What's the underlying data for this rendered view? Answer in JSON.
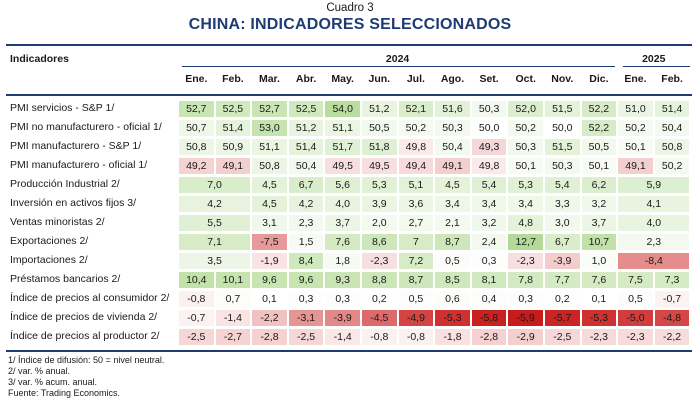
{
  "header": {
    "number": "Cuadro 3",
    "title": "CHINA: INDICADORES SELECCIONADOS"
  },
  "table": {
    "indicator_header": "Indicadores",
    "year_groups": [
      "2024",
      "2025"
    ],
    "months": [
      "Ene.",
      "Feb.",
      "Mar.",
      "Abr.",
      "May.",
      "Jun.",
      "Jul.",
      "Ago.",
      "Set.",
      "Oct.",
      "Nov.",
      "Dic.",
      "Ene.",
      "Feb."
    ],
    "rows": [
      {
        "label": "PMI servicios - S&P 1/",
        "cells": [
          {
            "v": "52,7",
            "c": "#c8e5b3"
          },
          {
            "v": "52,5",
            "c": "#d0e9bd"
          },
          {
            "v": "52,7",
            "c": "#c8e5b3"
          },
          {
            "v": "52,5",
            "c": "#d0e9bd"
          },
          {
            "v": "54,0",
            "c": "#b8dd9e"
          },
          {
            "v": "51,2",
            "c": "#e8f4df"
          },
          {
            "v": "52,1",
            "c": "#d9edca"
          },
          {
            "v": "51,6",
            "c": "#e2f1d8"
          },
          {
            "v": "50,3",
            "c": "#f4f9ef"
          },
          {
            "v": "52,0",
            "c": "#dbeecd"
          },
          {
            "v": "51,5",
            "c": "#e3f2d9"
          },
          {
            "v": "52,2",
            "c": "#d6ebc6"
          },
          {
            "v": "51,0",
            "c": "#ebf5e3"
          },
          {
            "v": "51,4",
            "c": "#e5f2dc"
          }
        ]
      },
      {
        "label": "PMI no manufacturero - oficial 1/",
        "cells": [
          {
            "v": "50,7",
            "c": "#eef7e8"
          },
          {
            "v": "51,4",
            "c": "#e5f2dc"
          },
          {
            "v": "53,0",
            "c": "#c4e3ad"
          },
          {
            "v": "51,2",
            "c": "#e8f4df"
          },
          {
            "v": "51,1",
            "c": "#eaf5e2"
          },
          {
            "v": "50,5",
            "c": "#f1f8ec"
          },
          {
            "v": "50,2",
            "c": "#f5faf1"
          },
          {
            "v": "50,3",
            "c": "#f4f9ef"
          },
          {
            "v": "50,0",
            "c": "#ffffff"
          },
          {
            "v": "50,2",
            "c": "#f5faf1"
          },
          {
            "v": "50,0",
            "c": "#ffffff"
          },
          {
            "v": "52,2",
            "c": "#d6ebc6"
          },
          {
            "v": "50,2",
            "c": "#f5faf1"
          },
          {
            "v": "50,4",
            "c": "#f2f9ed"
          }
        ]
      },
      {
        "label": "PMI manufacturero - S&P 1/",
        "cells": [
          {
            "v": "50,8",
            "c": "#edf6e6"
          },
          {
            "v": "50,9",
            "c": "#ecf6e5"
          },
          {
            "v": "51,1",
            "c": "#eaf5e2"
          },
          {
            "v": "51,4",
            "c": "#e5f2dc"
          },
          {
            "v": "51,7",
            "c": "#e0f0d5"
          },
          {
            "v": "51,8",
            "c": "#dfefd3"
          },
          {
            "v": "49,8",
            "c": "#fbeaea"
          },
          {
            "v": "50,4",
            "c": "#f2f9ed"
          },
          {
            "v": "49,3",
            "c": "#f6d7d7"
          },
          {
            "v": "50,3",
            "c": "#f4f9ef"
          },
          {
            "v": "51,5",
            "c": "#e3f2d9"
          },
          {
            "v": "50,5",
            "c": "#f1f8ec"
          },
          {
            "v": "50,1",
            "c": "#f8fbf5"
          },
          {
            "v": "50,8",
            "c": "#edf6e6"
          }
        ]
      },
      {
        "label": "PMI manufacturero - oficial 1/",
        "cells": [
          {
            "v": "49,2",
            "c": "#f5d3d3"
          },
          {
            "v": "49,1",
            "c": "#f4cfcf"
          },
          {
            "v": "50,8",
            "c": "#edf6e6"
          },
          {
            "v": "50,4",
            "c": "#f2f9ed"
          },
          {
            "v": "49,5",
            "c": "#f8dfdf"
          },
          {
            "v": "49,5",
            "c": "#f8dfdf"
          },
          {
            "v": "49,4",
            "c": "#f7dbdb"
          },
          {
            "v": "49,1",
            "c": "#f4cfcf"
          },
          {
            "v": "49,8",
            "c": "#fbeaea"
          },
          {
            "v": "50,1",
            "c": "#f8fbf5"
          },
          {
            "v": "50,3",
            "c": "#f4f9ef"
          },
          {
            "v": "50,1",
            "c": "#f8fbf5"
          },
          {
            "v": "49,1",
            "c": "#f4cfcf"
          },
          {
            "v": "50,2",
            "c": "#f5faf1"
          }
        ]
      },
      {
        "label": "Producción Industrial 2/",
        "cells": [
          {
            "v": "7,0",
            "c": "#d8edca",
            "span": 2
          },
          {
            "v": "4,5",
            "c": "#e4f2da"
          },
          {
            "v": "6,7",
            "c": "#d9edca"
          },
          {
            "v": "5,6",
            "c": "#dff0d3"
          },
          {
            "v": "5,3",
            "c": "#e1f1d6"
          },
          {
            "v": "5,1",
            "c": "#e2f1d8"
          },
          {
            "v": "4,5",
            "c": "#e4f2da"
          },
          {
            "v": "5,4",
            "c": "#e0f0d5"
          },
          {
            "v": "5,3",
            "c": "#e1f1d6"
          },
          {
            "v": "5,4",
            "c": "#e0f0d5"
          },
          {
            "v": "6,2",
            "c": "#dbeecd"
          },
          {
            "v": "5,9",
            "c": "#dcefd0",
            "span": 2
          }
        ]
      },
      {
        "label": "Inversión en activos fijos 3/",
        "cells": [
          {
            "v": "4,2",
            "c": "#e7f3de",
            "span": 2
          },
          {
            "v": "4,5",
            "c": "#e4f2da"
          },
          {
            "v": "4,2",
            "c": "#e7f3de"
          },
          {
            "v": "4,0",
            "c": "#e9f4e0"
          },
          {
            "v": "3,9",
            "c": "#eaf5e2"
          },
          {
            "v": "3,6",
            "c": "#ecf6e5"
          },
          {
            "v": "3,4",
            "c": "#eef7e8"
          },
          {
            "v": "3,4",
            "c": "#eef7e8"
          },
          {
            "v": "3,4",
            "c": "#eef7e8"
          },
          {
            "v": "3,3",
            "c": "#eff7e9"
          },
          {
            "v": "3,2",
            "c": "#f0f8eb"
          },
          {
            "v": "4,1",
            "c": "#e8f4df",
            "span": 2
          }
        ]
      },
      {
        "label": "Ventas minoristas 2/",
        "cells": [
          {
            "v": "5,5",
            "c": "#e0f0d5",
            "span": 2
          },
          {
            "v": "3,1",
            "c": "#f0f8eb"
          },
          {
            "v": "2,3",
            "c": "#f4f9ef"
          },
          {
            "v": "3,7",
            "c": "#ecf6e5"
          },
          {
            "v": "2,0",
            "c": "#f5faf1"
          },
          {
            "v": "2,7",
            "c": "#f2f9ed"
          },
          {
            "v": "2,1",
            "c": "#f5faf1"
          },
          {
            "v": "3,2",
            "c": "#f0f8eb"
          },
          {
            "v": "4,8",
            "c": "#e3f2d9"
          },
          {
            "v": "3,0",
            "c": "#f1f8ec"
          },
          {
            "v": "3,7",
            "c": "#ecf6e5"
          },
          {
            "v": "4,0",
            "c": "#e9f4e0",
            "span": 2
          }
        ]
      },
      {
        "label": "Exportaciones  2/",
        "cells": [
          {
            "v": "7,1",
            "c": "#d6ebc6",
            "span": 2
          },
          {
            "v": "-7,5",
            "c": "#e89a9a"
          },
          {
            "v": "1,5",
            "c": "#f7fbf4"
          },
          {
            "v": "7,6",
            "c": "#d3eac2"
          },
          {
            "v": "8,6",
            "c": "#cde7ba"
          },
          {
            "v": "7",
            "c": "#d6ebc6"
          },
          {
            "v": "8,7",
            "c": "#cde7ba"
          },
          {
            "v": "2,4",
            "c": "#f3f9ee"
          },
          {
            "v": "12,7",
            "c": "#b3da98"
          },
          {
            "v": "6,7",
            "c": "#d9edca"
          },
          {
            "v": "10,7",
            "c": "#c0e1a8"
          },
          {
            "v": "2,3",
            "c": "#f4f9ef",
            "span": 2
          }
        ]
      },
      {
        "label": "Importaciones  2/",
        "cells": [
          {
            "v": "3,5",
            "c": "#edf6e6",
            "span": 2
          },
          {
            "v": "-1,9",
            "c": "#f9e3e3"
          },
          {
            "v": "8,4",
            "c": "#cfe8bc"
          },
          {
            "v": "1,8",
            "c": "#f6faf2"
          },
          {
            "v": "-2,3",
            "c": "#f8dfdf"
          },
          {
            "v": "7,2",
            "c": "#d6ebc6"
          },
          {
            "v": "0,5",
            "c": "#fcfdfa"
          },
          {
            "v": "0,3",
            "c": "#fdfefc"
          },
          {
            "v": "-2,3",
            "c": "#f8dfdf"
          },
          {
            "v": "-3,9",
            "c": "#f4cccc"
          },
          {
            "v": "1,0",
            "c": "#f9fcf7"
          },
          {
            "v": "-8,4",
            "c": "#e58c8c",
            "span": 2
          }
        ]
      },
      {
        "label": "Préstamos bancarios 2/",
        "cells": [
          {
            "v": "10,4",
            "c": "#c2e2aa"
          },
          {
            "v": "10,1",
            "c": "#c4e3ad"
          },
          {
            "v": "9,6",
            "c": "#c7e4b1"
          },
          {
            "v": "9,6",
            "c": "#c7e4b1"
          },
          {
            "v": "9,3",
            "c": "#c9e5b4"
          },
          {
            "v": "8,8",
            "c": "#cce6b8"
          },
          {
            "v": "8,7",
            "c": "#cde7ba"
          },
          {
            "v": "8,5",
            "c": "#cee7bb"
          },
          {
            "v": "8,1",
            "c": "#d1e9bf"
          },
          {
            "v": "7,8",
            "c": "#d2e9c1"
          },
          {
            "v": "7,7",
            "c": "#d3eac2"
          },
          {
            "v": "7,6",
            "c": "#d3eac2"
          },
          {
            "v": "7,5",
            "c": "#d4eac3"
          },
          {
            "v": "7,3",
            "c": "#d5ebc5"
          }
        ]
      },
      {
        "label": "Índice de precios al consumidor 2/",
        "cells": [
          {
            "v": "-0,8",
            "c": "#fcf1f1"
          },
          {
            "v": "0,7",
            "c": "#fbfdf9"
          },
          {
            "v": "0,1",
            "c": "#ffffff"
          },
          {
            "v": "0,3",
            "c": "#fdfefc"
          },
          {
            "v": "0,3",
            "c": "#fdfefc"
          },
          {
            "v": "0,2",
            "c": "#fefefd"
          },
          {
            "v": "0,5",
            "c": "#fcfdfa"
          },
          {
            "v": "0,6",
            "c": "#fbfdf9"
          },
          {
            "v": "0,4",
            "c": "#fcfdfb"
          },
          {
            "v": "0,3",
            "c": "#fdfefc"
          },
          {
            "v": "0,2",
            "c": "#fefefd"
          },
          {
            "v": "0,1",
            "c": "#ffffff"
          },
          {
            "v": "0,5",
            "c": "#fcfdfa"
          },
          {
            "v": "-0,7",
            "c": "#fcf2f2"
          }
        ]
      },
      {
        "label": "Índice de precios de vivienda 2/",
        "cells": [
          {
            "v": "-0,7",
            "c": "#fcf2f2"
          },
          {
            "v": "-1,4",
            "c": "#f9e3e3"
          },
          {
            "v": "-2,2",
            "c": "#f1c2c2"
          },
          {
            "v": "-3,1",
            "c": "#e69595"
          },
          {
            "v": "-3,9",
            "c": "#e38888"
          },
          {
            "v": "-4,5",
            "c": "#dd6a6a"
          },
          {
            "v": "-4,9",
            "c": "#d44444"
          },
          {
            "v": "-5,3",
            "c": "#cf3030"
          },
          {
            "v": "-5,8",
            "c": "#c92020"
          },
          {
            "v": "-5,9",
            "c": "#c81c1c"
          },
          {
            "v": "-5,7",
            "c": "#ca2424"
          },
          {
            "v": "-5,3",
            "c": "#cf3030"
          },
          {
            "v": "-5,0",
            "c": "#d23c3c"
          },
          {
            "v": "-4,8",
            "c": "#d54646"
          }
        ]
      },
      {
        "label": "Índice de precios al productor 2/",
        "cells": [
          {
            "v": "-2,5",
            "c": "#f6d7d7"
          },
          {
            "v": "-2,7",
            "c": "#f5d3d3"
          },
          {
            "v": "-2,8",
            "c": "#f5d1d1"
          },
          {
            "v": "-2,5",
            "c": "#f6d7d7"
          },
          {
            "v": "-1,4",
            "c": "#fae7e7"
          },
          {
            "v": "-0,8",
            "c": "#fcf1f1"
          },
          {
            "v": "-0,8",
            "c": "#fcf1f1"
          },
          {
            "v": "-1,8",
            "c": "#f9e1e1"
          },
          {
            "v": "-2,8",
            "c": "#f5d1d1"
          },
          {
            "v": "-2,9",
            "c": "#f4cfcf"
          },
          {
            "v": "-2,5",
            "c": "#f6d7d7"
          },
          {
            "v": "-2,3",
            "c": "#f7dbdb"
          },
          {
            "v": "-2,3",
            "c": "#f7dbdb"
          },
          {
            "v": "-2,2",
            "c": "#f7dcdc"
          }
        ]
      }
    ]
  },
  "footnotes": [
    "1/ Índice de difusión: 50 = nivel neutral.",
    "2/ var. % anual.",
    "3/ var. % acum. anual.",
    "Fuente: Trading Economics."
  ],
  "colors": {
    "navy": "#1f3b73"
  }
}
